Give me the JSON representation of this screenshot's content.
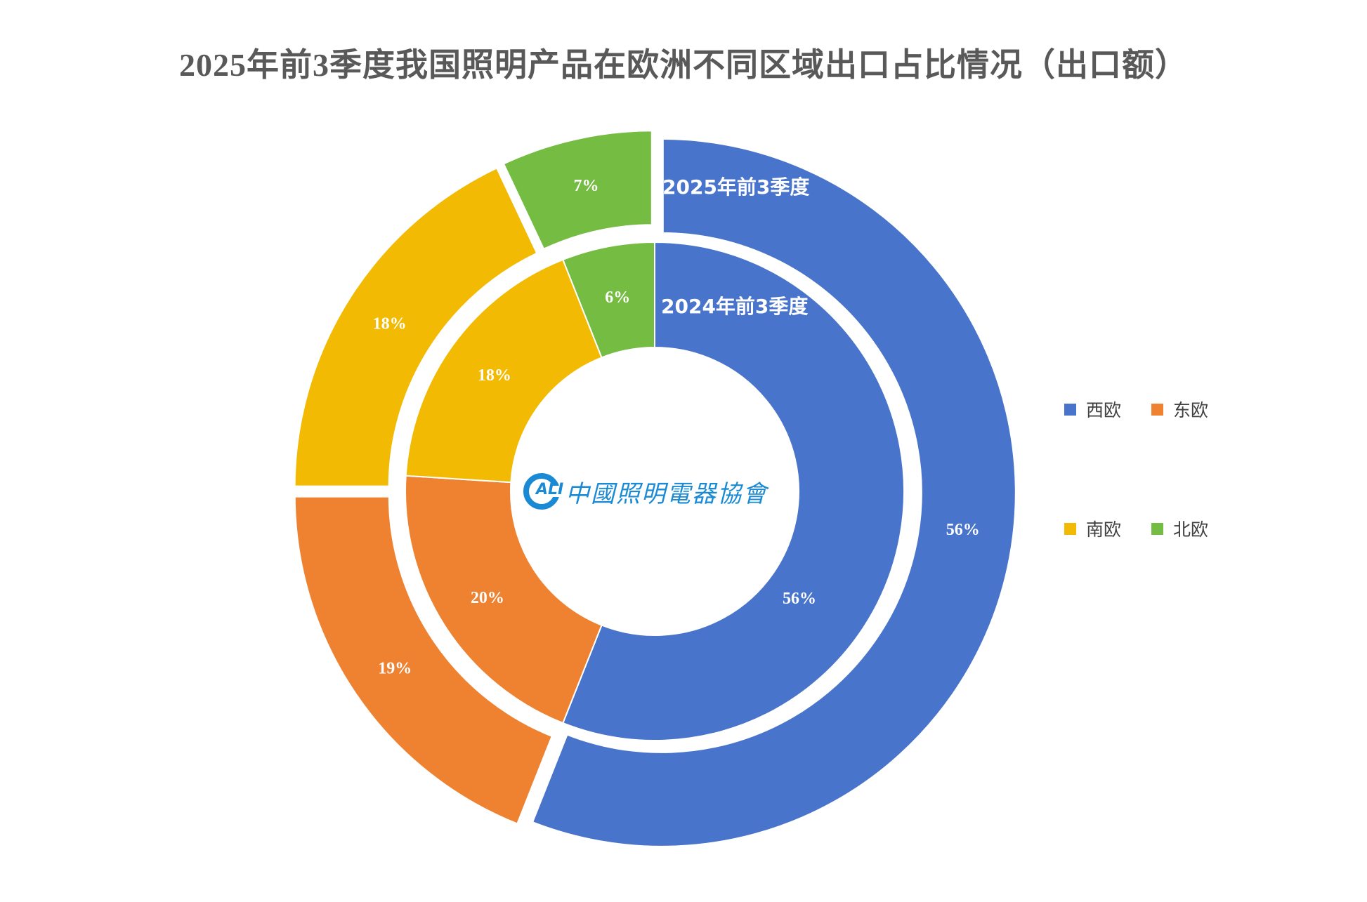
{
  "title": "2025年前3季度我国照明产品在欧洲不同区域出口占比情况（出口额）",
  "logo": {
    "mark_text": "ALI",
    "org_name": "中國照明電器協會"
  },
  "legend": [
    {
      "label": "西欧",
      "color": "#4874cb"
    },
    {
      "label": "东欧",
      "color": "#ee8231"
    },
    {
      "label": "南欧",
      "color": "#f2ba02"
    },
    {
      "label": "北欧",
      "color": "#75bc42"
    }
  ],
  "ring_labels": {
    "outer": "2025年前3季度",
    "inner": "2024年前3季度"
  },
  "chart_data": {
    "type": "doughnut",
    "title": "2025年前3季度我国照明产品在欧洲不同区域出口占比情况（出口额）",
    "categories": [
      "西欧",
      "东欧",
      "南欧",
      "北欧"
    ],
    "colors": [
      "#4874cb",
      "#ee8231",
      "#f2ba02",
      "#75bc42"
    ],
    "series": [
      {
        "name": "2025年前3季度",
        "ring": "outer",
        "values": [
          56,
          19,
          18,
          7
        ],
        "labels": [
          "56%",
          "19%",
          "18%",
          "7%"
        ]
      },
      {
        "name": "2024年前3季度",
        "ring": "inner",
        "values": [
          56,
          20,
          18,
          6
        ],
        "labels": [
          "56%",
          "20%",
          "18%",
          "6%"
        ]
      }
    ],
    "start_angle": "12 o'clock, clockwise",
    "legend_position": "right",
    "unit": "%"
  }
}
